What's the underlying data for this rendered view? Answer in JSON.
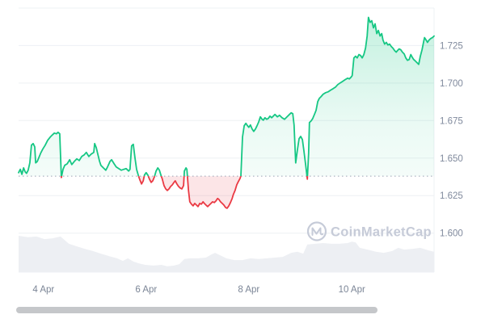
{
  "watermark": {
    "text": "CoinMarketCap",
    "icon": "coinmarketcap-logo-icon",
    "color": "#c6cbd8"
  },
  "axes": {
    "y_tick_labels": [
      "1.725",
      "1.700",
      "1.675",
      "1.650",
      "1.625",
      "1.600"
    ],
    "x_tick_labels": [
      "4 Apr",
      "6 Apr",
      "8 Apr",
      "10 Apr"
    ]
  },
  "chart_data": {
    "type": "line",
    "title": "",
    "xlabel": "",
    "ylabel": "",
    "grid": true,
    "legend": false,
    "x_unit": "fraction of visible time window (approx 3 Apr to 11 Apr)",
    "y_range": [
      1.574,
      1.75
    ],
    "y_gridlines": [
      1.75,
      1.725,
      1.7,
      1.675,
      1.65,
      1.625,
      1.6
    ],
    "y_ticks": [
      1.725,
      1.7,
      1.675,
      1.65,
      1.625,
      1.6
    ],
    "x_ticks": [
      {
        "label": "4 Apr",
        "pos": 0.06
      },
      {
        "label": "6 Apr",
        "pos": 0.307
      },
      {
        "label": "8 Apr",
        "pos": 0.554
      },
      {
        "label": "10 Apr",
        "pos": 0.802
      }
    ],
    "baseline_value": 1.638,
    "colors": {
      "up": "#16c784",
      "down": "#ea3943",
      "up_fill_top": "rgba(22,199,132,0.25)",
      "up_fill_mid": "rgba(22,199,132,0.09)",
      "up_fill_bottom": "rgba(22,199,132,0.02)",
      "down_fill": "rgba(234,57,67,0.13)",
      "grid": "#edf0f4",
      "baseline": "#99a3b4",
      "axis_text": "#808a9d",
      "volume_fill": "#edeff3",
      "watermark": "#c6cbd8",
      "scrollbar": "#c5c7ca"
    },
    "series": [
      {
        "name": "price",
        "points": [
          [
            0.0,
            1.6403
          ],
          [
            0.004,
            1.6425
          ],
          [
            0.008,
            1.6392
          ],
          [
            0.012,
            1.6435
          ],
          [
            0.016,
            1.6408
          ],
          [
            0.019,
            1.6398
          ],
          [
            0.023,
            1.6419
          ],
          [
            0.027,
            1.6468
          ],
          [
            0.031,
            1.6586
          ],
          [
            0.035,
            1.6597
          ],
          [
            0.039,
            1.6575
          ],
          [
            0.041,
            1.6468
          ],
          [
            0.045,
            1.6478
          ],
          [
            0.049,
            1.6505
          ],
          [
            0.053,
            1.6532
          ],
          [
            0.058,
            1.6559
          ],
          [
            0.064,
            1.6586
          ],
          [
            0.07,
            1.6619
          ],
          [
            0.076,
            1.664
          ],
          [
            0.082,
            1.6656
          ],
          [
            0.086,
            1.6667
          ],
          [
            0.091,
            1.6662
          ],
          [
            0.095,
            1.6672
          ],
          [
            0.099,
            1.6662
          ],
          [
            0.103,
            1.6371
          ],
          [
            0.107,
            1.6425
          ],
          [
            0.111,
            1.6452
          ],
          [
            0.117,
            1.6462
          ],
          [
            0.123,
            1.6489
          ],
          [
            0.128,
            1.6457
          ],
          [
            0.134,
            1.6478
          ],
          [
            0.14,
            1.6495
          ],
          [
            0.146,
            1.6484
          ],
          [
            0.152,
            1.6511
          ],
          [
            0.158,
            1.6522
          ],
          [
            0.163,
            1.6538
          ],
          [
            0.169,
            1.6511
          ],
          [
            0.175,
            1.6527
          ],
          [
            0.181,
            1.6538
          ],
          [
            0.183,
            1.6597
          ],
          [
            0.187,
            1.657
          ],
          [
            0.191,
            1.6522
          ],
          [
            0.195,
            1.6478
          ],
          [
            0.198,
            1.6452
          ],
          [
            0.204,
            1.6435
          ],
          [
            0.21,
            1.6419
          ],
          [
            0.214,
            1.6441
          ],
          [
            0.22,
            1.6478
          ],
          [
            0.224,
            1.6489
          ],
          [
            0.23,
            1.6462
          ],
          [
            0.235,
            1.6441
          ],
          [
            0.241,
            1.643
          ],
          [
            0.247,
            1.6419
          ],
          [
            0.253,
            1.6425
          ],
          [
            0.259,
            1.643
          ],
          [
            0.265,
            1.6414
          ],
          [
            0.268,
            1.6425
          ],
          [
            0.272,
            1.6581
          ],
          [
            0.276,
            1.6592
          ],
          [
            0.28,
            1.6505
          ],
          [
            0.284,
            1.6425
          ],
          [
            0.288,
            1.6387
          ],
          [
            0.292,
            1.6354
          ],
          [
            0.296,
            1.6328
          ],
          [
            0.3,
            1.6349
          ],
          [
            0.303,
            1.6387
          ],
          [
            0.307,
            1.6403
          ],
          [
            0.311,
            1.6387
          ],
          [
            0.315,
            1.636
          ],
          [
            0.319,
            1.6338
          ],
          [
            0.323,
            1.6349
          ],
          [
            0.327,
            1.6376
          ],
          [
            0.331,
            1.6414
          ],
          [
            0.335,
            1.6435
          ],
          [
            0.339,
            1.6419
          ],
          [
            0.342,
            1.6392
          ],
          [
            0.346,
            1.636
          ],
          [
            0.35,
            1.6317
          ],
          [
            0.354,
            1.6295
          ],
          [
            0.358,
            1.6284
          ],
          [
            0.362,
            1.6295
          ],
          [
            0.366,
            1.6311
          ],
          [
            0.37,
            1.6322
          ],
          [
            0.374,
            1.6338
          ],
          [
            0.377,
            1.6349
          ],
          [
            0.381,
            1.6328
          ],
          [
            0.385,
            1.6311
          ],
          [
            0.389,
            1.6301
          ],
          [
            0.393,
            1.6295
          ],
          [
            0.397,
            1.6317
          ],
          [
            0.399,
            1.6414
          ],
          [
            0.403,
            1.6435
          ],
          [
            0.405,
            1.6425
          ],
          [
            0.409,
            1.6284
          ],
          [
            0.412,
            1.6209
          ],
          [
            0.416,
            1.6193
          ],
          [
            0.42,
            1.6182
          ],
          [
            0.424,
            1.6198
          ],
          [
            0.428,
            1.6187
          ],
          [
            0.432,
            1.6177
          ],
          [
            0.436,
            1.6198
          ],
          [
            0.44,
            1.6193
          ],
          [
            0.444,
            1.6209
          ],
          [
            0.447,
            1.6198
          ],
          [
            0.451,
            1.6187
          ],
          [
            0.455,
            1.6177
          ],
          [
            0.459,
            1.6187
          ],
          [
            0.463,
            1.6198
          ],
          [
            0.467,
            1.6209
          ],
          [
            0.471,
            1.6204
          ],
          [
            0.475,
            1.6214
          ],
          [
            0.479,
            1.6231
          ],
          [
            0.482,
            1.6225
          ],
          [
            0.486,
            1.6209
          ],
          [
            0.49,
            1.6198
          ],
          [
            0.494,
            1.6187
          ],
          [
            0.498,
            1.6171
          ],
          [
            0.502,
            1.6166
          ],
          [
            0.506,
            1.6182
          ],
          [
            0.51,
            1.6204
          ],
          [
            0.514,
            1.6231
          ],
          [
            0.517,
            1.6258
          ],
          [
            0.521,
            1.6284
          ],
          [
            0.525,
            1.6322
          ],
          [
            0.529,
            1.6344
          ],
          [
            0.533,
            1.6365
          ],
          [
            0.535,
            1.6381
          ],
          [
            0.539,
            1.664
          ],
          [
            0.543,
            1.6716
          ],
          [
            0.547,
            1.6732
          ],
          [
            0.551,
            1.6716
          ],
          [
            0.554,
            1.6705
          ],
          [
            0.558,
            1.6721
          ],
          [
            0.562,
            1.6694
          ],
          [
            0.566,
            1.6678
          ],
          [
            0.57,
            1.6694
          ],
          [
            0.574,
            1.6716
          ],
          [
            0.578,
            1.6742
          ],
          [
            0.582,
            1.6775
          ],
          [
            0.586,
            1.6759
          ],
          [
            0.589,
            1.6753
          ],
          [
            0.593,
            1.6769
          ],
          [
            0.597,
            1.6759
          ],
          [
            0.601,
            1.6764
          ],
          [
            0.605,
            1.678
          ],
          [
            0.609,
            1.6769
          ],
          [
            0.613,
            1.678
          ],
          [
            0.617,
            1.6791
          ],
          [
            0.623,
            1.6775
          ],
          [
            0.628,
            1.6786
          ],
          [
            0.634,
            1.6769
          ],
          [
            0.64,
            1.6759
          ],
          [
            0.646,
            1.6775
          ],
          [
            0.652,
            1.6791
          ],
          [
            0.656,
            1.6802
          ],
          [
            0.66,
            1.6796
          ],
          [
            0.663,
            1.6721
          ],
          [
            0.667,
            1.6468
          ],
          [
            0.671,
            1.6554
          ],
          [
            0.675,
            1.6629
          ],
          [
            0.679,
            1.6645
          ],
          [
            0.683,
            1.6624
          ],
          [
            0.687,
            1.6543
          ],
          [
            0.691,
            1.6452
          ],
          [
            0.695,
            1.636
          ],
          [
            0.698,
            1.6532
          ],
          [
            0.7,
            1.6737
          ],
          [
            0.704,
            1.6748
          ],
          [
            0.708,
            1.6764
          ],
          [
            0.712,
            1.6791
          ],
          [
            0.716,
            1.6818
          ],
          [
            0.72,
            1.6877
          ],
          [
            0.724,
            1.6899
          ],
          [
            0.728,
            1.691
          ],
          [
            0.733,
            1.6926
          ],
          [
            0.739,
            1.6936
          ],
          [
            0.745,
            1.6942
          ],
          [
            0.751,
            1.6953
          ],
          [
            0.757,
            1.6963
          ],
          [
            0.763,
            1.6974
          ],
          [
            0.768,
            1.699
          ],
          [
            0.774,
            1.7001
          ],
          [
            0.78,
            1.7012
          ],
          [
            0.786,
            1.7023
          ],
          [
            0.792,
            1.7033
          ],
          [
            0.796,
            1.7028
          ],
          [
            0.8,
            1.7039
          ],
          [
            0.803,
            1.705
          ],
          [
            0.807,
            1.7168
          ],
          [
            0.811,
            1.7179
          ],
          [
            0.815,
            1.7168
          ],
          [
            0.819,
            1.719
          ],
          [
            0.823,
            1.7184
          ],
          [
            0.827,
            1.7168
          ],
          [
            0.831,
            1.719
          ],
          [
            0.835,
            1.7233
          ],
          [
            0.839,
            1.7314
          ],
          [
            0.842,
            1.7438
          ],
          [
            0.846,
            1.7405
          ],
          [
            0.85,
            1.7416
          ],
          [
            0.854,
            1.7368
          ],
          [
            0.858,
            1.7395
          ],
          [
            0.862,
            1.733
          ],
          [
            0.866,
            1.7351
          ],
          [
            0.87,
            1.7314
          ],
          [
            0.874,
            1.733
          ],
          [
            0.877,
            1.7287
          ],
          [
            0.881,
            1.726
          ],
          [
            0.885,
            1.7271
          ],
          [
            0.889,
            1.7254
          ],
          [
            0.893,
            1.726
          ],
          [
            0.897,
            1.7244
          ],
          [
            0.901,
            1.7233
          ],
          [
            0.905,
            1.7217
          ],
          [
            0.909,
            1.7206
          ],
          [
            0.912,
            1.7217
          ],
          [
            0.916,
            1.7228
          ],
          [
            0.92,
            1.7222
          ],
          [
            0.924,
            1.7206
          ],
          [
            0.928,
            1.7195
          ],
          [
            0.932,
            1.7168
          ],
          [
            0.936,
            1.7152
          ],
          [
            0.94,
            1.7157
          ],
          [
            0.944,
            1.719
          ],
          [
            0.947,
            1.7174
          ],
          [
            0.951,
            1.7157
          ],
          [
            0.955,
            1.7147
          ],
          [
            0.959,
            1.7136
          ],
          [
            0.963,
            1.7125
          ],
          [
            0.967,
            1.7179
          ],
          [
            0.971,
            1.7222
          ],
          [
            0.975,
            1.7276
          ],
          [
            0.977,
            1.7303
          ],
          [
            0.981,
            1.7287
          ],
          [
            0.984,
            1.7271
          ],
          [
            0.988,
            1.7287
          ],
          [
            0.992,
            1.7297
          ],
          [
            0.996,
            1.7303
          ],
          [
            1.0,
            1.7314
          ]
        ]
      }
    ],
    "volume_profile": {
      "note": "relative height of grey volume silhouette, 0-1, no axis shown",
      "points": [
        [
          0.0,
          1.0
        ],
        [
          0.023,
          0.96
        ],
        [
          0.043,
          0.98
        ],
        [
          0.062,
          0.91
        ],
        [
          0.082,
          0.93
        ],
        [
          0.101,
          0.98
        ],
        [
          0.121,
          0.78
        ],
        [
          0.14,
          0.71
        ],
        [
          0.16,
          0.64
        ],
        [
          0.179,
          0.58
        ],
        [
          0.198,
          0.51
        ],
        [
          0.218,
          0.44
        ],
        [
          0.237,
          0.38
        ],
        [
          0.251,
          0.31
        ],
        [
          0.263,
          0.38
        ],
        [
          0.276,
          0.29
        ],
        [
          0.29,
          0.24
        ],
        [
          0.305,
          0.2
        ],
        [
          0.325,
          0.18
        ],
        [
          0.344,
          0.2
        ],
        [
          0.358,
          0.16
        ],
        [
          0.374,
          0.18
        ],
        [
          0.387,
          0.22
        ],
        [
          0.399,
          0.36
        ],
        [
          0.412,
          0.38
        ],
        [
          0.432,
          0.38
        ],
        [
          0.451,
          0.4
        ],
        [
          0.465,
          0.49
        ],
        [
          0.473,
          0.53
        ],
        [
          0.484,
          0.47
        ],
        [
          0.5,
          0.38
        ],
        [
          0.519,
          0.33
        ],
        [
          0.539,
          0.33
        ],
        [
          0.558,
          0.38
        ],
        [
          0.578,
          0.36
        ],
        [
          0.597,
          0.38
        ],
        [
          0.617,
          0.4
        ],
        [
          0.636,
          0.42
        ],
        [
          0.656,
          0.53
        ],
        [
          0.671,
          0.56
        ],
        [
          0.685,
          0.51
        ],
        [
          0.695,
          0.76
        ],
        [
          0.714,
          0.78
        ],
        [
          0.733,
          0.8
        ],
        [
          0.753,
          0.78
        ],
        [
          0.772,
          0.78
        ],
        [
          0.792,
          0.8
        ],
        [
          0.802,
          0.84
        ],
        [
          0.811,
          0.82
        ],
        [
          0.821,
          0.67
        ],
        [
          0.84,
          0.62
        ],
        [
          0.86,
          0.56
        ],
        [
          0.879,
          0.53
        ],
        [
          0.899,
          0.58
        ],
        [
          0.914,
          0.67
        ],
        [
          0.928,
          0.62
        ],
        [
          0.947,
          0.64
        ],
        [
          0.967,
          0.67
        ],
        [
          0.986,
          0.6
        ],
        [
          1.0,
          0.56
        ]
      ]
    }
  }
}
